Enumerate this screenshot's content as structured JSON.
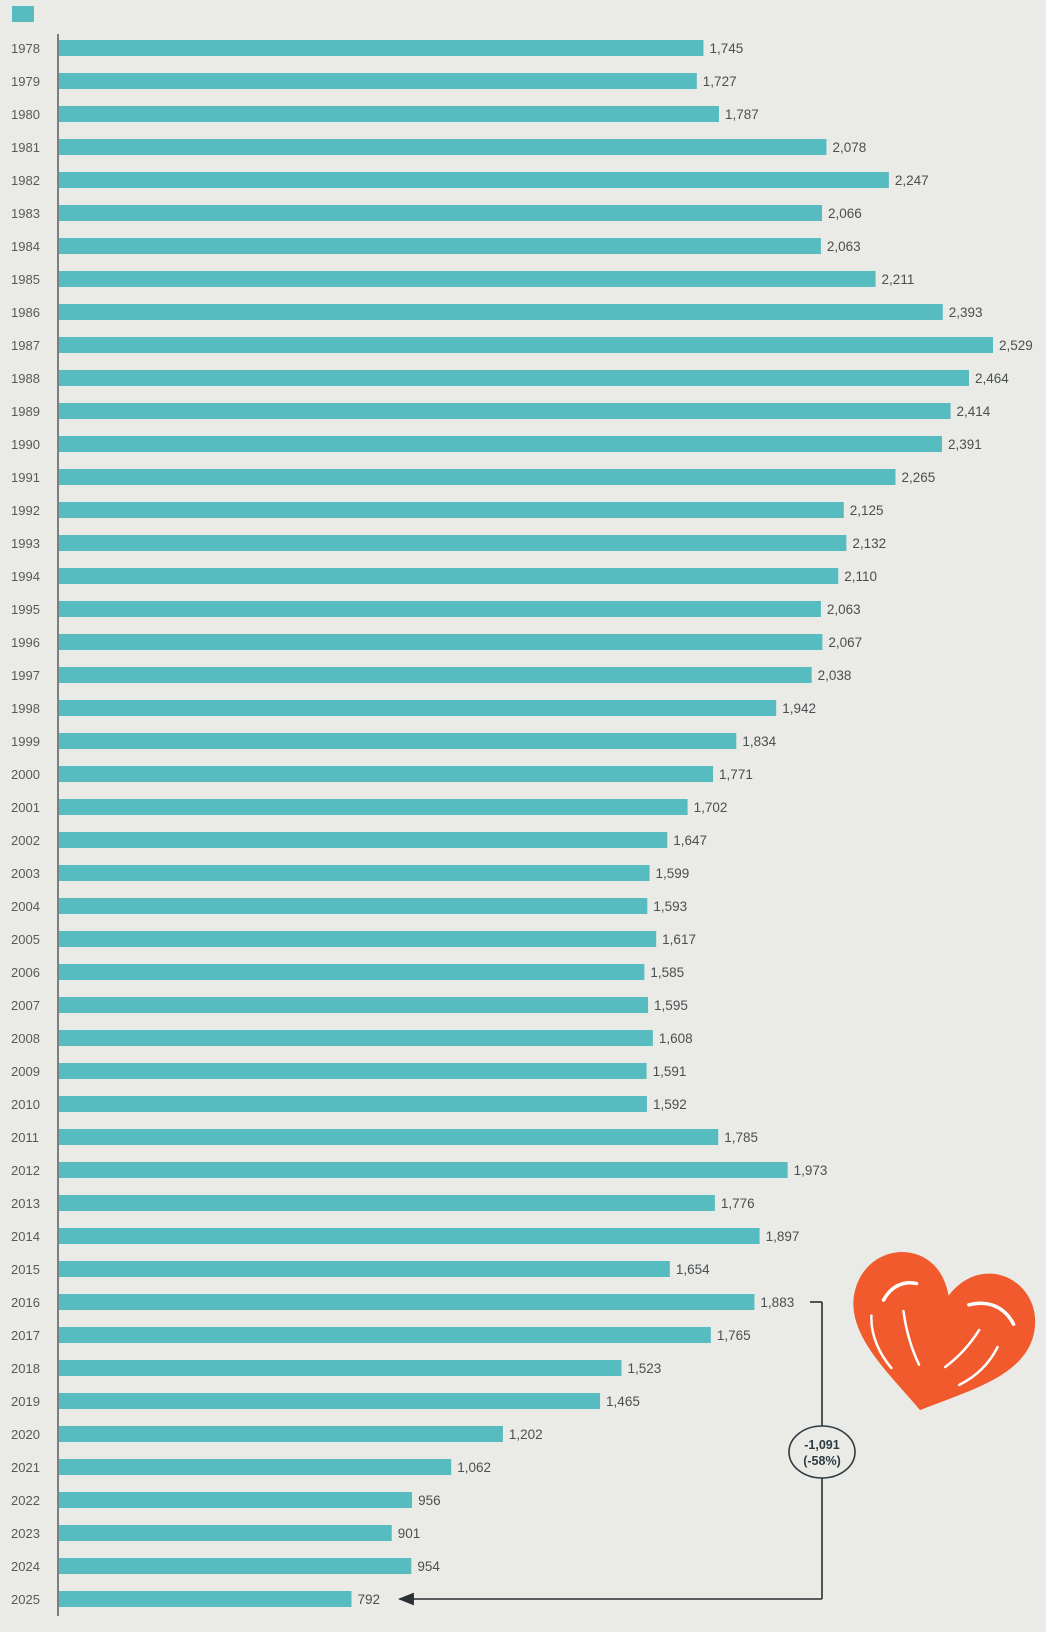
{
  "chart_data": {
    "type": "bar",
    "orientation": "horizontal",
    "legend": {
      "label": "",
      "position": "top-left",
      "color": "#56bcc0"
    },
    "categories": [
      "1978",
      "1979",
      "1980",
      "1981",
      "1982",
      "1983",
      "1984",
      "1985",
      "1986",
      "1987",
      "1988",
      "1989",
      "1990",
      "1991",
      "1992",
      "1993",
      "1994",
      "1995",
      "1996",
      "1997",
      "1998",
      "1999",
      "2000",
      "2001",
      "2002",
      "2003",
      "2004",
      "2005",
      "2006",
      "2007",
      "2008",
      "2009",
      "2010",
      "2011",
      "2012",
      "2013",
      "2014",
      "2015",
      "2016",
      "2017",
      "2018",
      "2019",
      "2020",
      "2021",
      "2022",
      "2023",
      "2024",
      "2025"
    ],
    "values": [
      1745,
      1727,
      1787,
      2078,
      2247,
      2066,
      2063,
      2211,
      2393,
      2529,
      2464,
      2414,
      2391,
      2265,
      2125,
      2132,
      2110,
      2063,
      2067,
      2038,
      1942,
      1834,
      1771,
      1702,
      1647,
      1599,
      1593,
      1617,
      1585,
      1595,
      1608,
      1591,
      1592,
      1785,
      1973,
      1776,
      1897,
      1654,
      1883,
      1765,
      1523,
      1465,
      1202,
      1062,
      956,
      901,
      954,
      792
    ],
    "value_labels": [
      "1,745",
      "1,727",
      "1,787",
      "2,078",
      "2,247",
      "2,066",
      "2,063",
      "2,211",
      "2,393",
      "2,529",
      "2,464",
      "2,414",
      "2,391",
      "2,265",
      "2,125",
      "2,132",
      "2,110",
      "2,063",
      "2,067",
      "2,038",
      "1,942",
      "1,834",
      "1,771",
      "1,702",
      "1,647",
      "1,599",
      "1,593",
      "1,617",
      "1,585",
      "1,595",
      "1,608",
      "1,591",
      "1,592",
      "1,785",
      "1,973",
      "1,776",
      "1,897",
      "1,654",
      "1,883",
      "1,765",
      "1,523",
      "1,465",
      "1,202",
      "1,062",
      "956",
      "901",
      "954",
      "792"
    ],
    "xlim": [
      0,
      2529
    ],
    "title": "",
    "xlabel": "",
    "ylabel": "",
    "grid": false,
    "annotation": {
      "from_category": "2016",
      "to_category": "2025",
      "change": "-1,091",
      "percent": "(-58%)"
    },
    "colors": {
      "bar": "#56bcc0",
      "background": "#eaebe7",
      "axis": "#7a7f7f",
      "heart": "#f05a2c"
    },
    "decoration": "heart-sticker"
  }
}
